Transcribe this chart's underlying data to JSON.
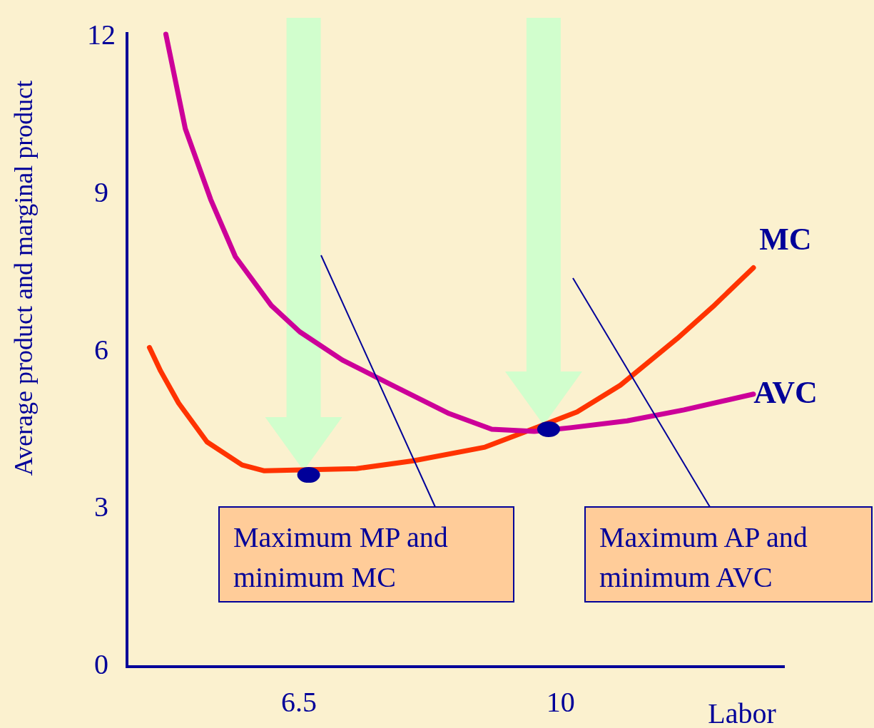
{
  "chart_data": {
    "type": "line",
    "ylabel": "Average product and marginal product",
    "xlabel": "Labor",
    "xlim": [
      4.2,
      13
    ],
    "ylim": [
      0,
      12
    ],
    "xticks": [
      6.5,
      10
    ],
    "yticks": [
      0,
      3,
      6,
      9,
      12
    ],
    "series": [
      {
        "name": "MC",
        "color": "#ff3300",
        "x": [
          4.5,
          4.65,
          4.89,
          5.27,
          5.74,
          6.03,
          7.27,
          8.03,
          8.99,
          10.22,
          10.8,
          11.56,
          12.04,
          12.58
        ],
        "values": [
          6.03,
          5.58,
          4.97,
          4.23,
          3.79,
          3.68,
          3.72,
          3.87,
          4.13,
          4.8,
          5.31,
          6.2,
          6.81,
          7.55
        ]
      },
      {
        "name": "AVC",
        "color": "#cc0099",
        "x": [
          4.72,
          4.98,
          5.32,
          5.65,
          6.13,
          6.51,
          7.08,
          7.75,
          8.51,
          9.08,
          9.65,
          10.13,
          10.89,
          11.65,
          12.58
        ],
        "values": [
          12.0,
          10.2,
          8.85,
          7.76,
          6.83,
          6.33,
          5.79,
          5.31,
          4.77,
          4.47,
          4.43,
          4.5,
          4.63,
          4.84,
          5.14
        ]
      },
      {
        "type": "scatter",
        "color": "#000099",
        "marker": "circle",
        "x": [
          6.63,
          9.84
        ],
        "values": [
          3.6,
          4.47
        ]
      }
    ],
    "annotations": [
      "Maximum MP and minimum MC",
      "Maximum AP and minimum AVC"
    ]
  }
}
